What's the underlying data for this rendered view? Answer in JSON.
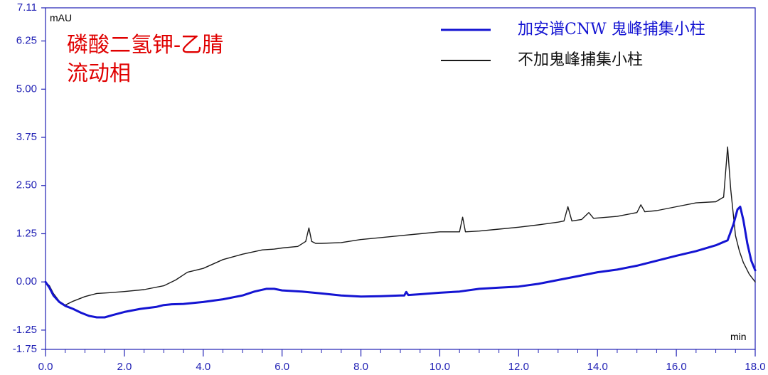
{
  "chart_data": {
    "type": "line",
    "xlabel": "min",
    "ylabel": "mAU",
    "xlim": [
      0,
      18
    ],
    "ylim": [
      -1.75,
      7.11
    ],
    "x_ticks": [
      0,
      2,
      4,
      6,
      8,
      10,
      12,
      14,
      16,
      18
    ],
    "x_tick_labels": [
      "0.0",
      "2.0",
      "4.0",
      "6.0",
      "8.0",
      "10.0",
      "12.0",
      "14.0",
      "16.0",
      "18.0"
    ],
    "y_ticks": [
      -1.75,
      -1.25,
      0,
      1.25,
      2.5,
      3.75,
      5.0,
      6.25,
      7.11
    ],
    "y_tick_labels": [
      "-1.75",
      "-1.25",
      "0.00",
      "1.25",
      "2.50",
      "3.75",
      "5.00",
      "6.25",
      "7.11"
    ],
    "grid": false,
    "legend_position": "top-right",
    "annotations": [
      "磷酸二氢钾-乙腈",
      "流动相"
    ],
    "colors": {
      "axis": "#1f1fb4",
      "annotation": "#e00000"
    },
    "series": [
      {
        "name": "加安谱CNW 鬼峰捕集小柱",
        "color": "#1414d2",
        "points": [
          [
            0.0,
            0.0
          ],
          [
            0.1,
            -0.15
          ],
          [
            0.2,
            -0.35
          ],
          [
            0.35,
            -0.52
          ],
          [
            0.5,
            -0.62
          ],
          [
            0.7,
            -0.7
          ],
          [
            0.9,
            -0.8
          ],
          [
            1.1,
            -0.88
          ],
          [
            1.3,
            -0.92
          ],
          [
            1.5,
            -0.92
          ],
          [
            1.7,
            -0.86
          ],
          [
            2.0,
            -0.78
          ],
          [
            2.4,
            -0.7
          ],
          [
            2.8,
            -0.65
          ],
          [
            3.0,
            -0.6
          ],
          [
            3.2,
            -0.58
          ],
          [
            3.5,
            -0.57
          ],
          [
            4.0,
            -0.52
          ],
          [
            4.5,
            -0.45
          ],
          [
            5.0,
            -0.35
          ],
          [
            5.3,
            -0.25
          ],
          [
            5.6,
            -0.18
          ],
          [
            5.8,
            -0.18
          ],
          [
            6.0,
            -0.22
          ],
          [
            6.5,
            -0.25
          ],
          [
            7.0,
            -0.3
          ],
          [
            7.5,
            -0.35
          ],
          [
            8.0,
            -0.38
          ],
          [
            8.5,
            -0.37
          ],
          [
            9.0,
            -0.35
          ],
          [
            9.1,
            -0.35
          ],
          [
            9.15,
            -0.26
          ],
          [
            9.2,
            -0.34
          ],
          [
            9.5,
            -0.32
          ],
          [
            10.0,
            -0.28
          ],
          [
            10.5,
            -0.25
          ],
          [
            11.0,
            -0.18
          ],
          [
            11.5,
            -0.15
          ],
          [
            12.0,
            -0.12
          ],
          [
            12.5,
            -0.05
          ],
          [
            13.0,
            0.05
          ],
          [
            13.5,
            0.15
          ],
          [
            14.0,
            0.25
          ],
          [
            14.5,
            0.32
          ],
          [
            15.0,
            0.42
          ],
          [
            15.5,
            0.55
          ],
          [
            16.0,
            0.68
          ],
          [
            16.5,
            0.8
          ],
          [
            17.0,
            0.95
          ],
          [
            17.3,
            1.08
          ],
          [
            17.45,
            1.5
          ],
          [
            17.55,
            1.88
          ],
          [
            17.62,
            1.95
          ],
          [
            17.7,
            1.6
          ],
          [
            17.8,
            1.0
          ],
          [
            17.9,
            0.55
          ],
          [
            18.0,
            0.3
          ]
        ]
      },
      {
        "name": "不加鬼峰捕集小柱",
        "color": "#1a1a1a",
        "points": [
          [
            0.0,
            0.0
          ],
          [
            0.1,
            -0.1
          ],
          [
            0.2,
            -0.3
          ],
          [
            0.35,
            -0.5
          ],
          [
            0.5,
            -0.6
          ],
          [
            0.7,
            -0.5
          ],
          [
            1.0,
            -0.38
          ],
          [
            1.3,
            -0.3
          ],
          [
            1.6,
            -0.28
          ],
          [
            2.0,
            -0.25
          ],
          [
            2.5,
            -0.2
          ],
          [
            3.0,
            -0.1
          ],
          [
            3.3,
            0.05
          ],
          [
            3.6,
            0.25
          ],
          [
            4.0,
            0.35
          ],
          [
            4.5,
            0.58
          ],
          [
            5.0,
            0.72
          ],
          [
            5.5,
            0.83
          ],
          [
            5.8,
            0.85
          ],
          [
            6.0,
            0.88
          ],
          [
            6.4,
            0.92
          ],
          [
            6.6,
            1.05
          ],
          [
            6.68,
            1.4
          ],
          [
            6.75,
            1.05
          ],
          [
            6.85,
            1.0
          ],
          [
            7.0,
            1.0
          ],
          [
            7.5,
            1.02
          ],
          [
            8.0,
            1.1
          ],
          [
            8.5,
            1.15
          ],
          [
            9.0,
            1.2
          ],
          [
            9.5,
            1.25
          ],
          [
            10.0,
            1.3
          ],
          [
            10.5,
            1.3
          ],
          [
            10.58,
            1.68
          ],
          [
            10.65,
            1.3
          ],
          [
            11.0,
            1.32
          ],
          [
            11.5,
            1.37
          ],
          [
            12.0,
            1.42
          ],
          [
            12.5,
            1.48
          ],
          [
            13.0,
            1.55
          ],
          [
            13.15,
            1.58
          ],
          [
            13.25,
            1.95
          ],
          [
            13.35,
            1.58
          ],
          [
            13.6,
            1.62
          ],
          [
            13.78,
            1.8
          ],
          [
            13.9,
            1.65
          ],
          [
            14.5,
            1.7
          ],
          [
            15.0,
            1.8
          ],
          [
            15.1,
            2.0
          ],
          [
            15.2,
            1.82
          ],
          [
            15.5,
            1.85
          ],
          [
            16.0,
            1.95
          ],
          [
            16.5,
            2.05
          ],
          [
            17.0,
            2.08
          ],
          [
            17.2,
            2.2
          ],
          [
            17.3,
            3.5
          ],
          [
            17.38,
            2.4
          ],
          [
            17.5,
            1.2
          ],
          [
            17.6,
            0.8
          ],
          [
            17.7,
            0.5
          ],
          [
            17.85,
            0.2
          ],
          [
            18.0,
            0.0
          ]
        ]
      }
    ]
  }
}
